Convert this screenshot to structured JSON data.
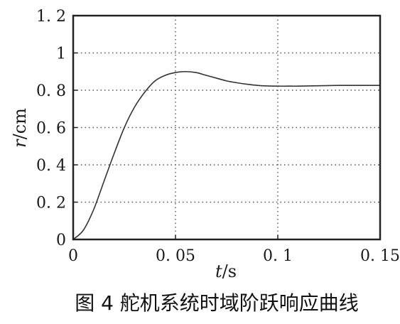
{
  "chart_data": {
    "type": "line",
    "caption": "图 4  舵机系统时域阶跃响应曲线",
    "xlabel_var": "t",
    "xlabel_unit": "/s",
    "ylabel_var": "r",
    "ylabel_unit": "/cm",
    "xlim": [
      0,
      0.15
    ],
    "ylim": [
      0,
      1.2
    ],
    "x_ticks": [
      0,
      0.05,
      0.1,
      0.15
    ],
    "x_tick_labels": [
      "0",
      "0. 05",
      "0. 1",
      "0. 15"
    ],
    "y_ticks": [
      0,
      0.2,
      0.4,
      0.6,
      0.8,
      1.0,
      1.2
    ],
    "y_tick_labels": [
      "0",
      "0. 2",
      "0. 4",
      "0. 6",
      "0. 8",
      "1",
      "1. 2"
    ],
    "grid": true,
    "colors": {
      "line": "#333333",
      "grid": "#555555",
      "frame": "#222222"
    },
    "series": [
      {
        "x": [
          0,
          0.005,
          0.01,
          0.015,
          0.02,
          0.025,
          0.03,
          0.035,
          0.04,
          0.045,
          0.05,
          0.055,
          0.06,
          0.065,
          0.07,
          0.075,
          0.08,
          0.085,
          0.09,
          0.095,
          0.1,
          0.105,
          0.11,
          0.115,
          0.12,
          0.125,
          0.13,
          0.135,
          0.14,
          0.145,
          0.15
        ],
        "values": [
          0,
          0.05,
          0.16,
          0.31,
          0.46,
          0.6,
          0.71,
          0.79,
          0.85,
          0.88,
          0.895,
          0.9,
          0.895,
          0.88,
          0.865,
          0.85,
          0.84,
          0.832,
          0.826,
          0.823,
          0.822,
          0.822,
          0.822,
          0.823,
          0.824,
          0.825,
          0.826,
          0.826,
          0.826,
          0.826,
          0.826
        ]
      }
    ]
  }
}
